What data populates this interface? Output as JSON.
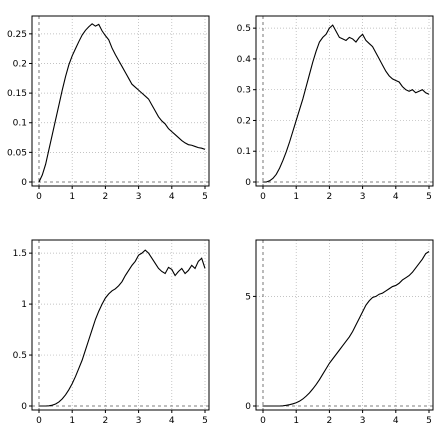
{
  "chart_data": [
    {
      "type": "line",
      "title": "",
      "xlabel": "",
      "ylabel": "",
      "xlim": [
        0,
        5
      ],
      "ylim": [
        0,
        0.27
      ],
      "xticks": [
        "0",
        "1",
        "2",
        "3",
        "4",
        "5"
      ],
      "yticks": [
        {
          "v": 0,
          "label": "0"
        },
        {
          "v": 0.05,
          "label": "0.05"
        },
        {
          "v": 0.1,
          "label": "0.1"
        },
        {
          "v": 0.15,
          "label": "0.15"
        },
        {
          "v": 0.2,
          "label": "0.2"
        },
        {
          "v": 0.25,
          "label": "0.25"
        }
      ],
      "grid": true,
      "series": [
        {
          "x": [
            0,
            0.1,
            0.2,
            0.3,
            0.4,
            0.5,
            0.6,
            0.7,
            0.8,
            0.9,
            1.0,
            1.1,
            1.2,
            1.3,
            1.4,
            1.5,
            1.6,
            1.7,
            1.8,
            1.9,
            2.0,
            2.1,
            2.2,
            2.3,
            2.4,
            2.5,
            2.6,
            2.7,
            2.8,
            2.9,
            3.0,
            3.1,
            3.2,
            3.3,
            3.4,
            3.5,
            3.6,
            3.7,
            3.8,
            3.9,
            4.0,
            4.1,
            4.2,
            4.3,
            4.4,
            4.5,
            4.6,
            4.7,
            4.8,
            4.9,
            5.0
          ],
          "values": [
            0.0,
            0.012,
            0.03,
            0.055,
            0.08,
            0.105,
            0.13,
            0.155,
            0.178,
            0.198,
            0.213,
            0.225,
            0.237,
            0.248,
            0.256,
            0.262,
            0.267,
            0.263,
            0.266,
            0.255,
            0.247,
            0.24,
            0.226,
            0.215,
            0.205,
            0.195,
            0.185,
            0.175,
            0.165,
            0.16,
            0.155,
            0.15,
            0.145,
            0.14,
            0.13,
            0.12,
            0.11,
            0.103,
            0.098,
            0.09,
            0.085,
            0.08,
            0.075,
            0.07,
            0.066,
            0.063,
            0.062,
            0.06,
            0.058,
            0.057,
            0.055
          ]
        }
      ]
    },
    {
      "type": "line",
      "title": "",
      "xlabel": "",
      "ylabel": "",
      "xlim": [
        0,
        5
      ],
      "ylim": [
        0,
        0.52
      ],
      "xticks": [
        "0",
        "1",
        "2",
        "3",
        "4",
        "5"
      ],
      "yticks": [
        {
          "v": 0,
          "label": "0"
        },
        {
          "v": 0.1,
          "label": "0.1"
        },
        {
          "v": 0.2,
          "label": "0.2"
        },
        {
          "v": 0.3,
          "label": "0.3"
        },
        {
          "v": 0.4,
          "label": "0.4"
        },
        {
          "v": 0.5,
          "label": "0.5"
        }
      ],
      "grid": true,
      "series": [
        {
          "x": [
            0,
            0.1,
            0.2,
            0.3,
            0.4,
            0.5,
            0.6,
            0.7,
            0.8,
            0.9,
            1.0,
            1.1,
            1.2,
            1.3,
            1.4,
            1.5,
            1.6,
            1.7,
            1.8,
            1.9,
            2.0,
            2.1,
            2.2,
            2.3,
            2.4,
            2.5,
            2.6,
            2.7,
            2.8,
            2.9,
            3.0,
            3.1,
            3.2,
            3.3,
            3.4,
            3.5,
            3.6,
            3.7,
            3.8,
            3.9,
            4.0,
            4.1,
            4.2,
            4.3,
            4.4,
            4.5,
            4.6,
            4.7,
            4.8,
            4.9,
            5.0
          ],
          "values": [
            0.0,
            0.0,
            0.004,
            0.012,
            0.025,
            0.045,
            0.07,
            0.098,
            0.13,
            0.165,
            0.2,
            0.235,
            0.27,
            0.31,
            0.35,
            0.39,
            0.425,
            0.455,
            0.47,
            0.48,
            0.5,
            0.51,
            0.49,
            0.47,
            0.465,
            0.46,
            0.47,
            0.465,
            0.455,
            0.47,
            0.48,
            0.46,
            0.45,
            0.44,
            0.42,
            0.4,
            0.38,
            0.36,
            0.345,
            0.335,
            0.33,
            0.325,
            0.31,
            0.3,
            0.295,
            0.3,
            0.29,
            0.295,
            0.3,
            0.29,
            0.285
          ]
        }
      ]
    },
    {
      "type": "line",
      "title": "",
      "xlabel": "",
      "ylabel": "",
      "xlim": [
        0,
        5
      ],
      "ylim": [
        0,
        1.57
      ],
      "xticks": [
        "0",
        "1",
        "2",
        "3",
        "4",
        "5"
      ],
      "yticks": [
        {
          "v": 0,
          "label": "0"
        },
        {
          "v": 0.5,
          "label": "0.5"
        },
        {
          "v": 1,
          "label": "1"
        },
        {
          "v": 1.5,
          "label": "1.5"
        }
      ],
      "grid": true,
      "series": [
        {
          "x": [
            0,
            0.1,
            0.2,
            0.3,
            0.4,
            0.5,
            0.6,
            0.7,
            0.8,
            0.9,
            1.0,
            1.1,
            1.2,
            1.3,
            1.4,
            1.5,
            1.6,
            1.7,
            1.8,
            1.9,
            2.0,
            2.1,
            2.2,
            2.3,
            2.4,
            2.5,
            2.6,
            2.7,
            2.8,
            2.9,
            3.0,
            3.1,
            3.2,
            3.3,
            3.4,
            3.5,
            3.6,
            3.7,
            3.8,
            3.9,
            4.0,
            4.1,
            4.2,
            4.3,
            4.4,
            4.5,
            4.6,
            4.7,
            4.8,
            4.9,
            5.0
          ],
          "values": [
            0.0,
            0.0,
            0.0,
            0.002,
            0.008,
            0.02,
            0.04,
            0.07,
            0.11,
            0.16,
            0.22,
            0.29,
            0.37,
            0.45,
            0.55,
            0.65,
            0.75,
            0.85,
            0.93,
            1.0,
            1.06,
            1.1,
            1.13,
            1.15,
            1.18,
            1.22,
            1.28,
            1.33,
            1.38,
            1.42,
            1.48,
            1.5,
            1.53,
            1.5,
            1.45,
            1.4,
            1.35,
            1.32,
            1.3,
            1.36,
            1.34,
            1.28,
            1.32,
            1.35,
            1.3,
            1.33,
            1.38,
            1.35,
            1.42,
            1.45,
            1.35
          ]
        }
      ]
    },
    {
      "type": "line",
      "title": "",
      "xlabel": "",
      "ylabel": "",
      "xlim": [
        0,
        5
      ],
      "ylim": [
        0,
        7.3
      ],
      "xticks": [
        "0",
        "1",
        "2",
        "3",
        "4",
        "5"
      ],
      "yticks": [
        {
          "v": 0,
          "label": "0"
        },
        {
          "v": 5,
          "label": "5"
        }
      ],
      "grid": true,
      "series": [
        {
          "x": [
            0,
            0.1,
            0.2,
            0.3,
            0.4,
            0.5,
            0.6,
            0.7,
            0.8,
            0.9,
            1.0,
            1.1,
            1.2,
            1.3,
            1.4,
            1.5,
            1.6,
            1.7,
            1.8,
            1.9,
            2.0,
            2.1,
            2.2,
            2.3,
            2.4,
            2.5,
            2.6,
            2.7,
            2.8,
            2.9,
            3.0,
            3.1,
            3.2,
            3.3,
            3.4,
            3.5,
            3.6,
            3.7,
            3.8,
            3.9,
            4.0,
            4.1,
            4.2,
            4.3,
            4.4,
            4.5,
            4.6,
            4.7,
            4.8,
            4.9,
            5.0
          ],
          "values": [
            0.0,
            0.0,
            0.0,
            0.0,
            0.0,
            0.0,
            0.01,
            0.03,
            0.06,
            0.1,
            0.15,
            0.22,
            0.32,
            0.45,
            0.6,
            0.78,
            0.98,
            1.2,
            1.45,
            1.7,
            1.95,
            2.15,
            2.35,
            2.55,
            2.75,
            2.95,
            3.15,
            3.4,
            3.7,
            4.0,
            4.3,
            4.6,
            4.8,
            4.95,
            5.0,
            5.1,
            5.15,
            5.25,
            5.35,
            5.45,
            5.5,
            5.6,
            5.75,
            5.85,
            5.95,
            6.1,
            6.3,
            6.5,
            6.7,
            6.95,
            7.05
          ]
        }
      ]
    }
  ]
}
